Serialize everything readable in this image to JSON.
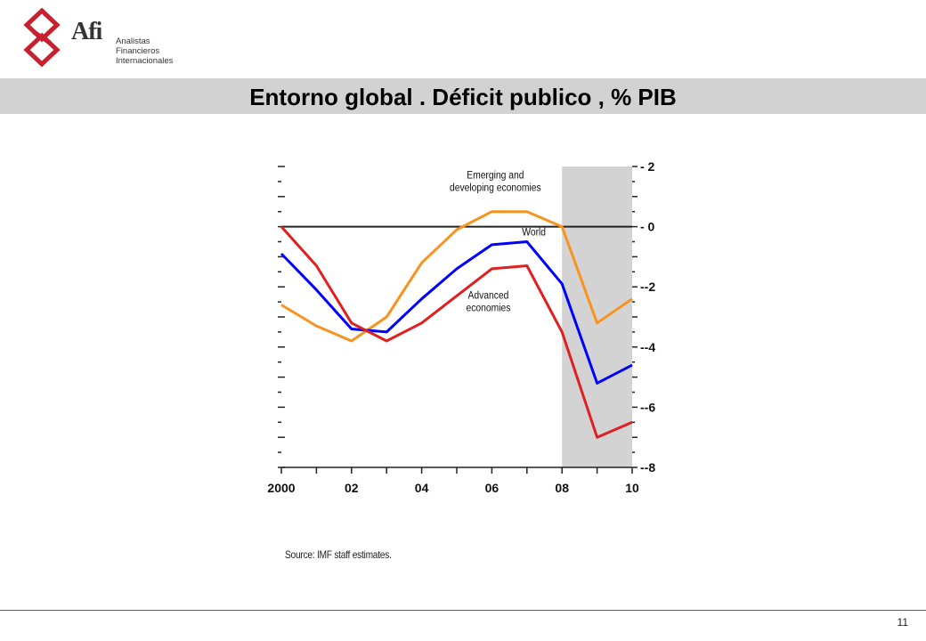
{
  "brand": {
    "logo_text": "Afi",
    "sub_lines": [
      "Analistas",
      "Financieros",
      "Internacionales"
    ],
    "logo_color": "#c8202f"
  },
  "slide": {
    "title": "Entorno global . Déficit publico , % PIB",
    "source": "Source: IMF staff estimates.",
    "page_number": "11"
  },
  "chart_data": {
    "type": "line",
    "x": [
      2000,
      2001,
      2002,
      2003,
      2004,
      2005,
      2006,
      2007,
      2008,
      2009,
      2010
    ],
    "x_tick_labels": [
      "2000",
      "02",
      "04",
      "06",
      "08",
      "10"
    ],
    "x_tick_values": [
      2000,
      2002,
      2004,
      2006,
      2008,
      2010
    ],
    "y_right_ticks": [
      2,
      0,
      -2,
      -4,
      -6,
      -8
    ],
    "ylim": [
      -8,
      2
    ],
    "shaded_region": {
      "from": 2008,
      "to": 2010,
      "color": "#d3d3d3"
    },
    "zero_line": true,
    "series": [
      {
        "name": "Emerging and developing economies",
        "label_lines": [
          "Emerging and",
          "developing economies"
        ],
        "color": "#f7931e",
        "values": [
          -2.6,
          -3.3,
          -3.8,
          -3.0,
          -1.2,
          -0.1,
          0.5,
          0.5,
          0.0,
          -3.2,
          -2.4
        ]
      },
      {
        "name": "World",
        "label_lines": [
          "World"
        ],
        "color": "#0000ff",
        "values": [
          -0.9,
          -2.1,
          -3.4,
          -3.5,
          -2.4,
          -1.4,
          -0.6,
          -0.5,
          -1.9,
          -5.2,
          -4.6
        ]
      },
      {
        "name": "Advanced economies",
        "label_lines": [
          "Advanced",
          "economies"
        ],
        "color": "#e02020",
        "values": [
          0.0,
          -1.3,
          -3.2,
          -3.8,
          -3.2,
          -2.3,
          -1.4,
          -1.3,
          -3.5,
          -7.0,
          -6.5
        ]
      }
    ]
  }
}
